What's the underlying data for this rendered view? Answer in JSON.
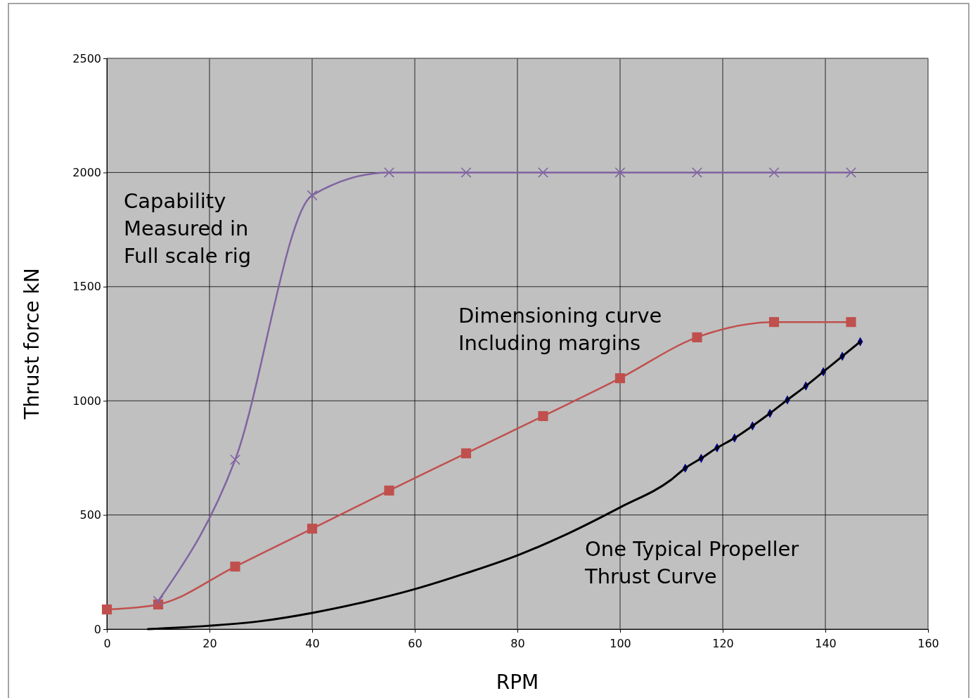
{
  "chart_data": {
    "type": "line",
    "xlabel": "RPM",
    "ylabel": "Thrust force kN",
    "xlim": [
      0,
      160
    ],
    "xticks": [
      0,
      20,
      40,
      60,
      80,
      100,
      120,
      140,
      160
    ],
    "ylim": [
      0,
      2500
    ],
    "yticks": [
      0,
      500,
      1000,
      1500,
      2000,
      2500
    ],
    "grid": true,
    "line_style": "solid",
    "series": [
      {
        "color": "#8064a2",
        "marker": "cross",
        "x": [
          10,
          25,
          40,
          55,
          70,
          85,
          100,
          115,
          130,
          145
        ],
        "values": [
          123,
          742,
          1900,
          2000,
          2000,
          2000,
          2000,
          2000,
          2000,
          2000
        ]
      },
      {
        "color": "#c0504d",
        "marker": "square",
        "x": [
          0,
          10,
          25,
          40,
          55,
          70,
          85,
          100,
          115,
          130,
          145
        ],
        "values": [
          86,
          108,
          274,
          440,
          607,
          770,
          933,
          1099,
          1278,
          1345,
          1345
        ]
      },
      {
        "color": "#000000",
        "marker": "none",
        "x": [
          8,
          20,
          30,
          40,
          50,
          60,
          70,
          80,
          90,
          100,
          110,
          112.7,
          115.8,
          118.9,
          122.3,
          125.8,
          129.2,
          132.6,
          136.2,
          139.6,
          143.3,
          146.8
        ],
        "values": [
          0,
          15,
          35,
          71,
          118,
          175,
          245,
          323,
          420,
          533,
          655,
          705,
          748,
          794,
          837,
          890,
          945,
          1004,
          1065,
          1127,
          1195,
          1259
        ]
      },
      {
        "type": "scatter",
        "color": "#000080",
        "marker": "diamond",
        "x": [
          112.7,
          115.8,
          118.9,
          122.3,
          125.8,
          129.2,
          132.6,
          136.2,
          139.6,
          143.3,
          146.8
        ],
        "values": [
          705,
          748,
          794,
          837,
          890,
          945,
          1004,
          1065,
          1127,
          1195,
          1259
        ]
      }
    ],
    "annotations": [
      "Capability\nMeasured in\nFull scale rig",
      "Dimensioning curve\nIncluding margins",
      "One Typical Propeller\nThrust Curve"
    ]
  }
}
